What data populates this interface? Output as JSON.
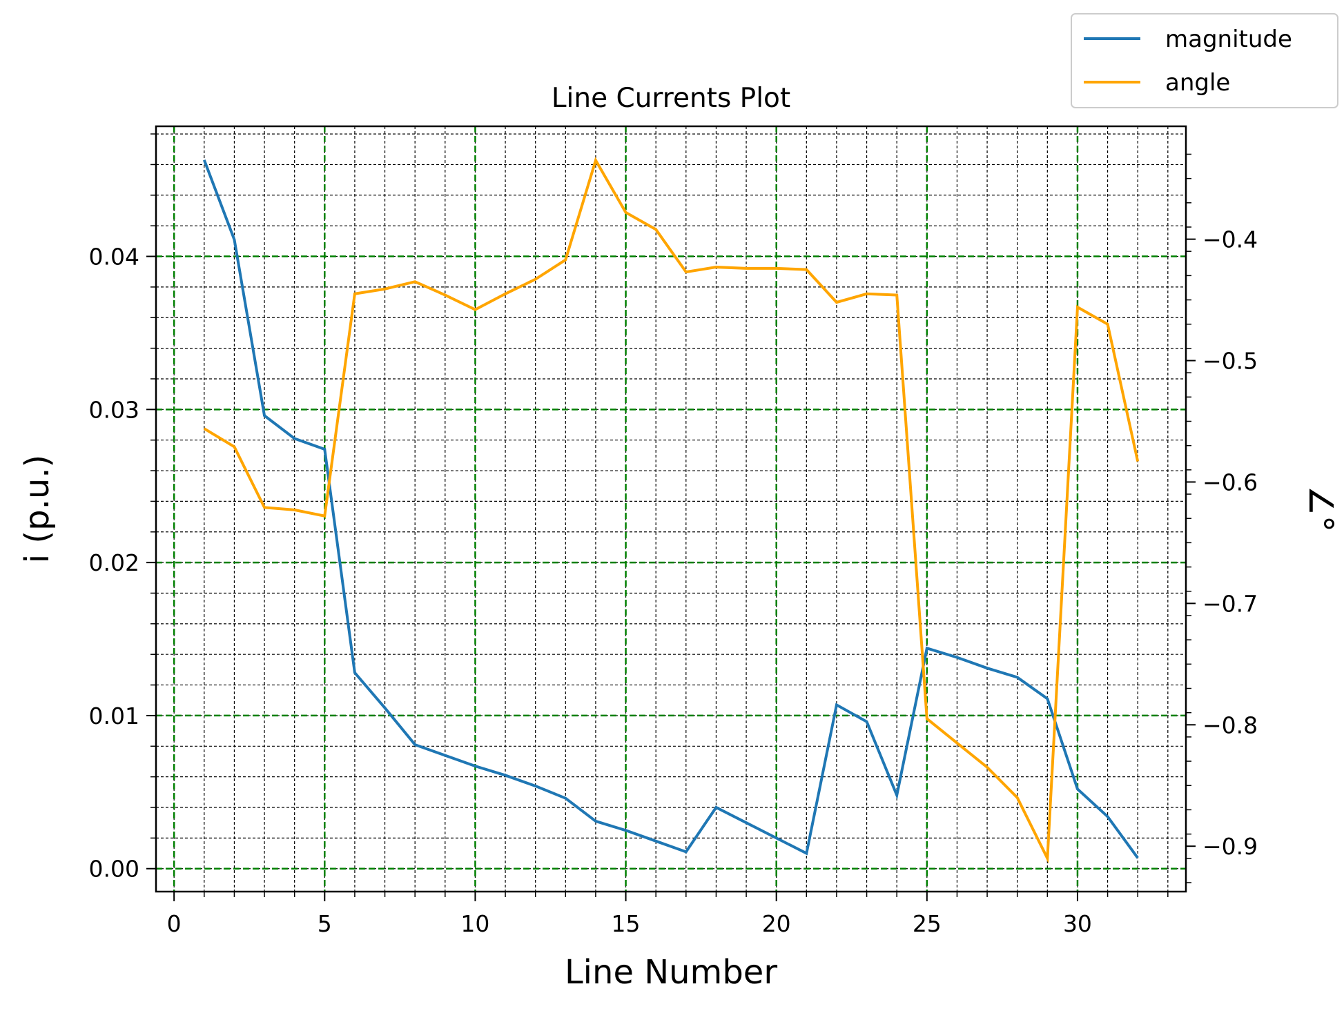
{
  "chart_data": {
    "type": "line",
    "title": "Line Currents Plot",
    "xlabel": "Line Number",
    "ylabel": "i (p.u.)",
    "y2label": "∠°",
    "xlim": [
      -0.6,
      33.6
    ],
    "ylim": [
      -0.0015,
      0.0485
    ],
    "y2lim": [
      -0.9374,
      -0.307
    ],
    "x_ticks": [
      0,
      5,
      10,
      15,
      20,
      25,
      30
    ],
    "x_ticks_text": [
      "0",
      "5",
      "10",
      "15",
      "20",
      "25",
      "30"
    ],
    "y_ticks": [
      0.0,
      0.01,
      0.02,
      0.03,
      0.04
    ],
    "y_ticks_text": [
      "0.00",
      "0.01",
      "0.02",
      "0.03",
      "0.04"
    ],
    "y2_ticks": [
      -0.9,
      -0.8,
      -0.7,
      -0.6,
      -0.5,
      -0.4
    ],
    "y2_ticks_text": [
      "−0.9",
      "−0.8",
      "−0.7",
      "−0.6",
      "−0.5",
      "−0.4"
    ],
    "grid": {
      "major": true,
      "minor": true,
      "major_color": "#008000",
      "minor_color": "#000000"
    },
    "legend_position": "top-right (outside)",
    "x": [
      1,
      2,
      3,
      4,
      5,
      6,
      7,
      8,
      9,
      10,
      11,
      12,
      13,
      14,
      15,
      16,
      17,
      18,
      19,
      20,
      21,
      22,
      23,
      24,
      25,
      26,
      27,
      28,
      29,
      30,
      31,
      32
    ],
    "series": [
      {
        "name": "magnitude",
        "axis": "left",
        "color": "#1f77b4",
        "values": [
          0.0463,
          0.0411,
          0.0296,
          0.0281,
          0.0274,
          0.0128,
          0.0105,
          0.0081,
          0.0074,
          0.0067,
          0.0061,
          0.0054,
          0.0046,
          0.0031,
          0.0025,
          0.0018,
          0.0011,
          0.004,
          0.003,
          0.002,
          0.001,
          0.0107,
          0.0096,
          0.0048,
          0.0144,
          0.0138,
          0.0131,
          0.0125,
          0.0111,
          0.0052,
          0.0034,
          0.0007
        ]
      },
      {
        "name": "angle",
        "axis": "right",
        "color": "#ffa500",
        "values": [
          -0.556,
          -0.571,
          -0.621,
          -0.623,
          -0.628,
          -0.445,
          -0.441,
          -0.435,
          -0.446,
          -0.458,
          -0.445,
          -0.433,
          -0.417,
          -0.335,
          -0.378,
          -0.392,
          -0.427,
          -0.423,
          -0.424,
          -0.424,
          -0.425,
          -0.452,
          -0.445,
          -0.446,
          -0.795,
          -0.815,
          -0.835,
          -0.86,
          -0.91,
          -0.456,
          -0.47,
          -0.583
        ]
      }
    ]
  }
}
